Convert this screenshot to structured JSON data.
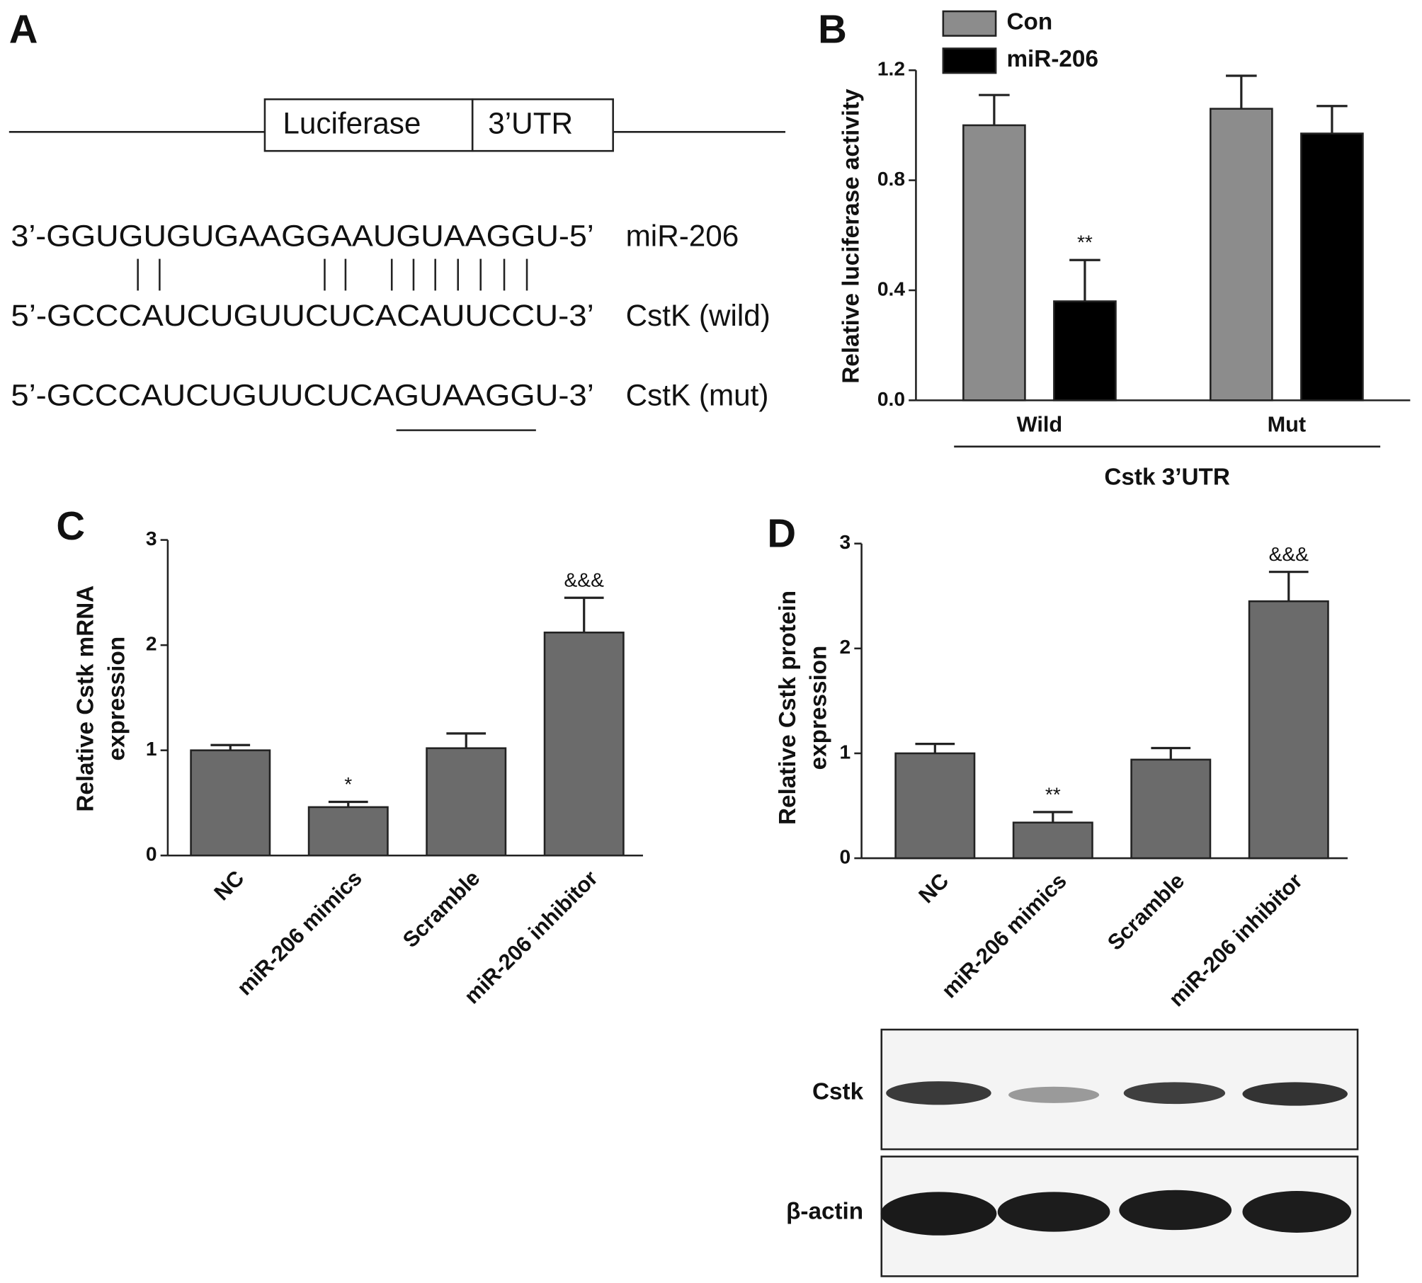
{
  "panel_labels": [
    "A",
    "B",
    "C",
    "D"
  ],
  "diagram": {
    "boxes": [
      "Luciferase",
      "3’UTR"
    ],
    "sequences": [
      {
        "sequence": "3’-GGUGUGUGAAGGAAUGUAAGGU-5’",
        "label": "miR-206"
      },
      {
        "sequence": "5’-GCCCAUCUGUUCUCACAUUCCU-3’",
        "label": "CstK (wild)"
      },
      {
        "sequence": "5’-GCCCAUCUGUUCUCAGUAAGGU-3’",
        "label": "CstK (mut)"
      }
    ]
  },
  "chart_data": [
    {
      "type": "bar",
      "ylabel": [
        "Relative luciferase activity"
      ],
      "xlabel": "Cstk 3’UTR",
      "categories": [
        "Wild",
        "Mut"
      ],
      "series": [
        {
          "name": "Con",
          "color": "#8c8c8c",
          "values": [
            1.0,
            1.06
          ],
          "errors": [
            0.11,
            0.12
          ],
          "value_annotations": [
            null,
            null
          ]
        },
        {
          "name": "miR-206",
          "color": "#000000",
          "values": [
            0.36,
            0.97
          ],
          "errors": [
            0.15,
            0.1
          ],
          "value_annotations": [
            "**",
            null
          ]
        }
      ],
      "ylim": [
        0,
        1.2
      ],
      "yticks": [
        {
          "value": 0,
          "label": "0.0"
        },
        0.4,
        0.8,
        1.2
      ],
      "legend": "top-left"
    },
    {
      "type": "bar",
      "ylabel": [
        "Relative Cstk mRNA",
        "expression"
      ],
      "categories": [
        "NC",
        "miR-206 mimics",
        "Scramble",
        "miR-206 inhibitor"
      ],
      "color": "#6b6b6b",
      "values": [
        1.0,
        0.46,
        1.02,
        2.12
      ],
      "errors": [
        0.05,
        0.05,
        0.14,
        0.33
      ],
      "value_annotations": [
        null,
        "*",
        null,
        "&&&"
      ],
      "ylim": [
        0,
        3
      ],
      "yticks": [
        0,
        1,
        2,
        3
      ]
    },
    {
      "type": "bar",
      "ylabel": [
        "Relative Cstk protein",
        "expression"
      ],
      "categories": [
        "NC",
        "miR-206 mimics",
        "Scramble",
        "miR-206 inhibitor"
      ],
      "color": "#6b6b6b",
      "values": [
        1.0,
        0.34,
        0.94,
        2.45
      ],
      "errors": [
        0.09,
        0.1,
        0.11,
        0.28
      ],
      "value_annotations": [
        null,
        "**",
        null,
        "&&&"
      ],
      "ylim": [
        0,
        3
      ],
      "yticks": [
        0,
        1,
        2,
        3
      ]
    }
  ],
  "blot": {
    "rows": [
      "Cstk",
      "β-actin"
    ]
  }
}
